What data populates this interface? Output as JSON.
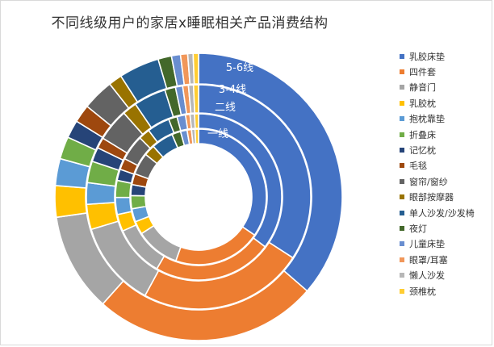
{
  "chart_data": {
    "type": "doughnut",
    "title": "不同线级用户的家居x睡眠相关产品消费结构",
    "ring_labels": [
      "5-6线",
      "3-4线",
      "二线",
      "一线"
    ],
    "categories": [
      "乳胶床垫",
      "四件套",
      "静音门",
      "乳胶枕",
      "抱枕靠垫",
      "折叠床",
      "记忆枕",
      "毛毯",
      "窗帘/窗纱",
      "眼部按摩器",
      "单人沙发/沙发椅",
      "夜灯",
      "儿童床垫",
      "眼罩/耳塞",
      "懒人沙发",
      "颈椎枕"
    ],
    "colors": [
      "#4472C4",
      "#ED7D31",
      "#A5A5A5",
      "#FFC000",
      "#5B9BD5",
      "#70AD47",
      "#264478",
      "#9E480E",
      "#636363",
      "#997300",
      "#255E91",
      "#43682B",
      "#698ED0",
      "#F1975A",
      "#B7B7B7",
      "#FFCD33"
    ],
    "series": [
      {
        "name": "5-6线",
        "values": [
          36.0,
          25.0,
          11.0,
          3.5,
          3.0,
          2.5,
          2.0,
          2.0,
          3.5,
          1.5,
          4.5,
          1.5,
          1.0,
          0.8,
          0.6,
          0.6
        ]
      },
      {
        "name": "3-4线",
        "values": [
          33.0,
          23.0,
          12.0,
          3.5,
          3.0,
          3.0,
          2.0,
          1.5,
          4.5,
          2.0,
          4.5,
          1.5,
          1.0,
          0.8,
          0.7,
          0.7
        ]
      },
      {
        "name": "二线",
        "values": [
          32.0,
          21.0,
          9.0,
          3.0,
          3.0,
          3.0,
          2.0,
          2.0,
          4.5,
          2.0,
          4.0,
          1.5,
          1.5,
          0.8,
          0.8,
          0.7
        ]
      },
      {
        "name": "一线",
        "values": [
          33.0,
          20.0,
          10.0,
          3.0,
          3.0,
          3.0,
          2.5,
          2.5,
          5.0,
          2.5,
          5.0,
          2.0,
          1.5,
          1.0,
          0.8,
          0.8
        ]
      }
    ]
  }
}
